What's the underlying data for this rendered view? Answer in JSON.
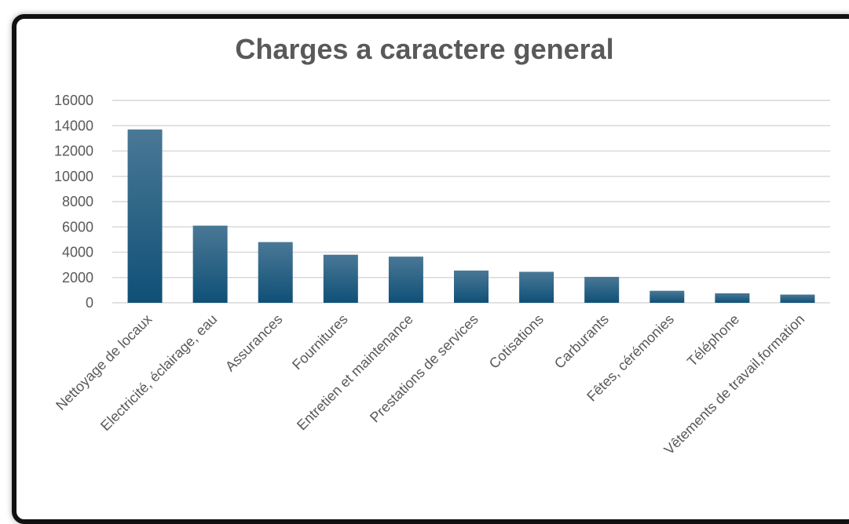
{
  "chart_data": {
    "type": "bar",
    "title": "Charges a caractere general",
    "xlabel": "",
    "ylabel": "",
    "categories": [
      "Nettoyage de locaux",
      "Electricité, éclairage, eau",
      "Assurances",
      "Fournitures",
      "Entretien et maintenance",
      "Prestations de services",
      "Cotisations",
      "Carburants",
      "Fêtes, cérémonies",
      "Téléphone",
      "Vêtements de travail,formation"
    ],
    "values": [
      13700,
      6100,
      4800,
      3800,
      3650,
      2550,
      2450,
      2050,
      950,
      750,
      650
    ],
    "ylim": [
      0,
      16000
    ],
    "yticks": [
      0,
      2000,
      4000,
      6000,
      8000,
      10000,
      12000,
      14000,
      16000
    ],
    "grid": true,
    "legend": "none",
    "colors": {
      "bar_top": "#4a7896",
      "bar_bottom": "#0f5077",
      "grid": "#d9d9d9",
      "text": "#595959",
      "frame": "#111111"
    }
  }
}
